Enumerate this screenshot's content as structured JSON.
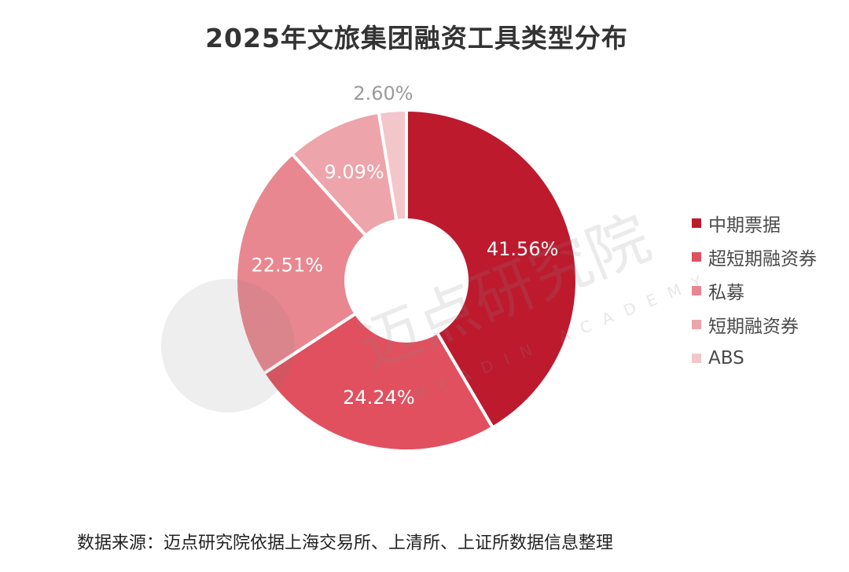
{
  "title": "2025年文旅集团融资工具类型分布",
  "chart_data": {
    "type": "pie",
    "donut": true,
    "title": "2025年文旅集团融资工具类型分布",
    "legend_position": "right",
    "slices": [
      {
        "name": "中期票据",
        "value": 41.56,
        "label": "41.56%",
        "color": "#bd1a2e"
      },
      {
        "name": "超短期融资券",
        "value": 24.24,
        "label": "24.24%",
        "color": "#e0505f"
      },
      {
        "name": "私募",
        "value": 22.51,
        "label": "22.51%",
        "color": "#e8878f"
      },
      {
        "name": "短期融资券",
        "value": 9.09,
        "label": "9.09%",
        "color": "#eda4aa"
      },
      {
        "name": "ABS",
        "value": 2.6,
        "label": "2.60%",
        "color": "#f3c6c9"
      }
    ]
  },
  "watermark": {
    "brand": "迈点研究院",
    "brand_en": "MEADIN ACADEMY"
  },
  "source": "数据来源：迈点研究院依据上海交易所、上清所、上证所数据信息整理"
}
